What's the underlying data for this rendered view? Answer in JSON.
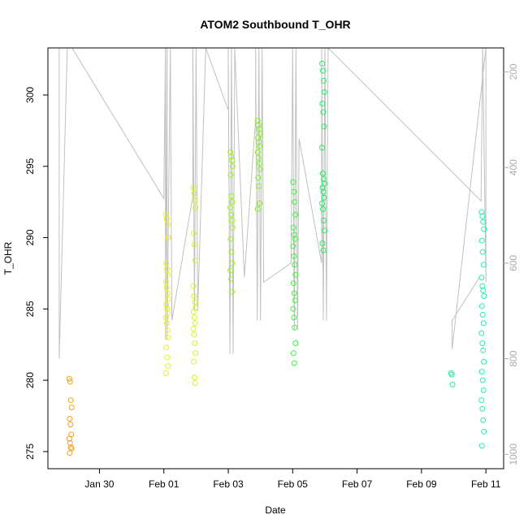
{
  "chart_data": {
    "type": "scatter",
    "title": "ATOM2 Southbound T_OHR",
    "xlabel": "Date",
    "ylabel": "T_OHR",
    "x_ticks": [
      "Jan 30",
      "Feb 01",
      "Feb 03",
      "Feb 05",
      "Feb 07",
      "Feb 09",
      "Feb 11"
    ],
    "x_tick_days": [
      30,
      32,
      34,
      36,
      38,
      40,
      42
    ],
    "xlim_days": [
      28.4,
      42.55
    ],
    "ylim": [
      273.8,
      303.3
    ],
    "y_ticks": [
      275,
      280,
      285,
      290,
      295,
      300
    ],
    "y2_ticks": [
      200,
      400,
      600,
      800,
      1000
    ],
    "y2lim": [
      1030,
      150
    ],
    "y2_color": "#aaaaaa",
    "line_color": "#c0c0c0",
    "marker": "open-circle",
    "grid": false,
    "clusters": [
      {
        "date": "Jan 29",
        "x_day": 29.1,
        "color": "#f0a020",
        "y_min": 274.8,
        "y_max": 280.2,
        "values": [
          280.1,
          279.9,
          278.6,
          278.1,
          277.3,
          276.9,
          276.2,
          275.9,
          275.6,
          275.3,
          275.2,
          274.9
        ]
      },
      {
        "date": "Feb 01",
        "x_day": 32.1,
        "color": "#e8f020",
        "y_min": 280.4,
        "y_max": 291.7,
        "values": [
          291.6,
          291.3,
          290.9,
          290.0,
          288.2,
          287.8,
          287.4,
          286.9,
          286.5,
          286.1,
          285.7,
          285.3,
          285.0,
          284.7,
          284.4,
          284.0,
          283.5,
          283.0,
          282.3,
          281.6,
          281.0,
          280.5
        ]
      },
      {
        "date": "Feb 01",
        "x_day": 32.95,
        "color": "#d8f020",
        "y_min": 279.7,
        "y_max": 293.6,
        "values": [
          293.5,
          293.1,
          292.6,
          292.1,
          290.3,
          289.5,
          288.4,
          286.6,
          285.9,
          285.5,
          285.1,
          284.8,
          284.4,
          284.0,
          283.6,
          283.2,
          282.6,
          281.9,
          281.3,
          280.2,
          279.8
        ]
      },
      {
        "date": "Feb 03",
        "x_day": 34.1,
        "color": "#a0f020",
        "y_min": 286.1,
        "y_max": 296.1,
        "values": [
          296.0,
          295.7,
          295.4,
          295.0,
          294.4,
          292.9,
          292.5,
          292.1,
          291.6,
          291.2,
          290.7,
          289.9,
          289.0,
          288.2,
          287.7,
          287.1,
          286.2
        ]
      },
      {
        "date": "Feb 03",
        "x_day": 34.95,
        "color": "#80f020",
        "y_min": 291.8,
        "y_max": 298.3,
        "values": [
          298.2,
          297.9,
          297.6,
          297.3,
          297.0,
          296.7,
          296.4,
          296.0,
          295.6,
          295.2,
          294.8,
          294.2,
          293.6,
          292.4,
          292.0
        ]
      },
      {
        "date": "Feb 05",
        "x_day": 36.05,
        "color": "#40f040",
        "y_min": 281.0,
        "y_max": 294.0,
        "values": [
          293.9,
          293.2,
          292.5,
          291.6,
          290.7,
          290.2,
          289.9,
          289.4,
          288.7,
          288.1,
          287.4,
          286.8,
          286.1,
          285.6,
          285.0,
          284.4,
          283.7,
          282.6,
          281.9,
          281.2
        ]
      },
      {
        "date": "Feb 06",
        "x_day": 36.95,
        "color": "#20f060",
        "y_min": 289.0,
        "y_max": 302.3,
        "values": [
          302.2,
          301.7,
          301.0,
          300.2,
          299.4,
          298.8,
          297.8,
          296.3,
          294.5,
          294.1,
          293.8,
          293.5,
          293.2,
          292.8,
          292.4,
          292.0,
          291.2,
          290.5,
          289.6,
          289.1
        ]
      },
      {
        "date": "Feb 10",
        "x_day": 40.95,
        "color": "#20f0a0",
        "y_min": 279.7,
        "y_max": 280.6,
        "values": [
          280.5,
          280.4,
          279.7
        ]
      },
      {
        "date": "Feb 11",
        "x_day": 41.9,
        "color": "#20f0b0",
        "y_min": 275.4,
        "y_max": 291.9,
        "values": [
          291.8,
          291.5,
          291.1,
          290.6,
          289.8,
          289.0,
          288.1,
          287.2,
          286.6,
          286.3,
          285.9,
          285.2,
          284.6,
          284.0,
          283.3,
          282.6,
          282.1,
          281.3,
          280.6,
          280.0,
          279.3,
          278.6,
          278.0,
          277.2,
          276.4,
          275.4
        ]
      }
    ],
    "depth_track_y2": [
      [
        28.75,
        150
      ],
      [
        28.75,
        800
      ],
      [
        29.0,
        150
      ],
      [
        29.15,
        150
      ],
      [
        32.0,
        465
      ],
      [
        32.05,
        150
      ],
      [
        32.05,
        760
      ],
      [
        32.1,
        150
      ],
      [
        32.1,
        760
      ],
      [
        32.2,
        150
      ],
      [
        32.25,
        720
      ],
      [
        32.9,
        460
      ],
      [
        32.9,
        150
      ],
      [
        32.95,
        700
      ],
      [
        33.0,
        150
      ],
      [
        33.05,
        700
      ],
      [
        33.3,
        150
      ],
      [
        34.0,
        280
      ],
      [
        34.0,
        150
      ],
      [
        34.05,
        790
      ],
      [
        34.1,
        150
      ],
      [
        34.15,
        790
      ],
      [
        34.2,
        150
      ],
      [
        34.5,
        630
      ],
      [
        34.85,
        300
      ],
      [
        34.85,
        150
      ],
      [
        34.9,
        720
      ],
      [
        34.95,
        150
      ],
      [
        35.0,
        720
      ],
      [
        35.05,
        150
      ],
      [
        35.1,
        640
      ],
      [
        35.95,
        600
      ],
      [
        36.0,
        150
      ],
      [
        36.05,
        740
      ],
      [
        36.1,
        150
      ],
      [
        36.15,
        740
      ],
      [
        36.2,
        340
      ],
      [
        36.9,
        600
      ],
      [
        36.9,
        150
      ],
      [
        36.95,
        720
      ],
      [
        37.0,
        150
      ],
      [
        37.05,
        720
      ],
      [
        37.1,
        150
      ],
      [
        41.85,
        470
      ],
      [
        41.9,
        150
      ],
      [
        42.0,
        640
      ],
      [
        42.0,
        150
      ],
      [
        40.95,
        780
      ],
      [
        40.95,
        720
      ],
      [
        41.8,
        630
      ]
    ]
  }
}
